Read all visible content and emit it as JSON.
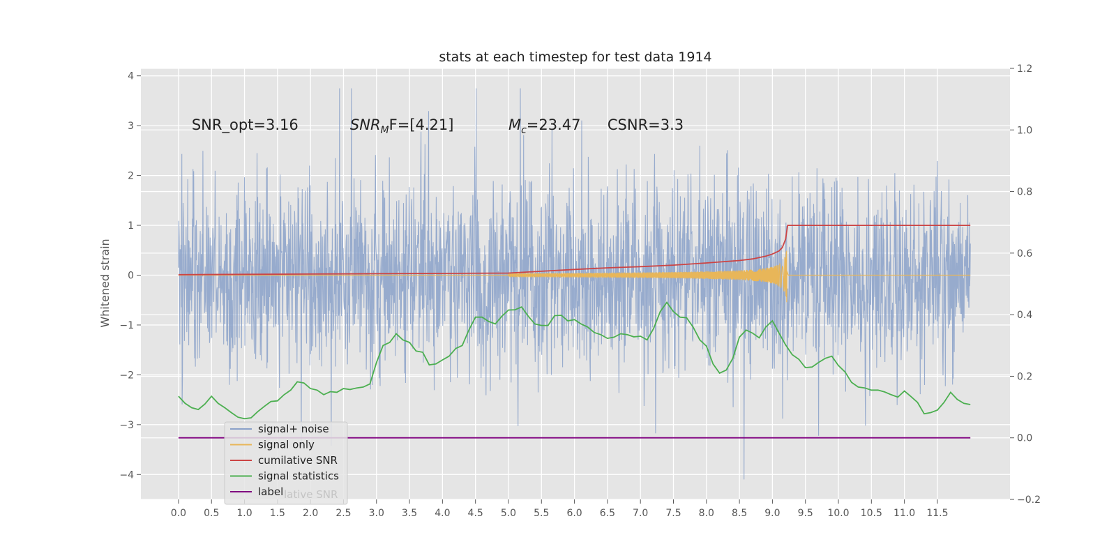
{
  "chart_data": {
    "type": "line",
    "title": "stats at each timestep for test data 1914",
    "xlabel": "",
    "ylabel": "Whitened strain",
    "xlim": [
      -0.57,
      12.6
    ],
    "ylim": [
      -4.5,
      4.15
    ],
    "ylim_right": [
      -0.2,
      1.2
    ],
    "grid": true,
    "legend_position": "lower-left",
    "x_ticks": [
      0.0,
      0.5,
      1.0,
      1.5,
      2.0,
      2.5,
      3.0,
      3.5,
      4.0,
      4.5,
      5.0,
      5.5,
      6.0,
      6.5,
      7.0,
      7.5,
      8.0,
      8.5,
      9.0,
      9.5,
      10.0,
      10.5,
      11.0,
      11.5
    ],
    "x_tick_labels": [
      "0.0",
      "0.5",
      "1.0",
      "1.5",
      "2.0",
      "2.5",
      "3.0",
      "3.5",
      "4.0",
      "4.5",
      "5.0",
      "5.5",
      "6.0",
      "6.5",
      "7.0",
      "7.5",
      "8.0",
      "8.5",
      "9.0",
      "9.5",
      "10.0",
      "10.5",
      "11.0",
      "11.5"
    ],
    "y_ticks": [
      -4,
      -3,
      -2,
      -1,
      0,
      1,
      2,
      3,
      4
    ],
    "y_tick_labels": [
      "−4",
      "−3",
      "−2",
      "−1",
      "0",
      "1",
      "2",
      "3",
      "4"
    ],
    "y_ticks_right": [
      -0.2,
      0.0,
      0.2,
      0.4,
      0.6,
      0.8,
      1.0,
      1.2
    ],
    "y_tick_labels_right": [
      "−0.2",
      "0.0",
      "0.2",
      "0.4",
      "0.6",
      "0.8",
      "1.0",
      "1.2"
    ],
    "annotations": [
      {
        "name": "snr-opt-annotation",
        "x": 0.2,
        "y": 2.92,
        "pre": "SNR_opt=3.16",
        "base": "",
        "sub": "",
        "post": ""
      },
      {
        "name": "snr-mf-annotation",
        "x": 2.6,
        "y": 2.92,
        "pre": "",
        "base": "SNR",
        "sub": "M",
        "post": "F=[4.21]"
      },
      {
        "name": "chirp-mass-annotation",
        "x": 5.0,
        "y": 2.92,
        "pre": "",
        "base": "M",
        "sub": "c",
        "post": "=23.47"
      },
      {
        "name": "csnr-annotation",
        "x": 6.5,
        "y": 2.92,
        "pre": "CSNR=3.3",
        "base": "",
        "sub": "",
        "post": ""
      }
    ],
    "series": [
      {
        "name": "signal+ noise",
        "axis": "left",
        "color": "#8aa1c9",
        "description": "whitened noise plus signal, ~1 sample per 0.005 s",
        "x_range": [
          0.0,
          12.0
        ],
        "noise_std": 0.95,
        "seed": 1914
      },
      {
        "name": "signal only",
        "axis": "left",
        "color": "#e8b659",
        "description": "chirp waveform growing to peak at merger",
        "x_start": 5.0,
        "merger_x": 9.22,
        "x_end": 12.0,
        "peak_amplitude": 0.6
      },
      {
        "name": "cumilative SNR",
        "axis": "right",
        "color": "#cc4444",
        "x": [
          0.0,
          1.0,
          2.0,
          3.0,
          4.0,
          5.0,
          5.5,
          6.0,
          6.5,
          7.0,
          7.5,
          8.0,
          8.5,
          8.7,
          8.9,
          9.0,
          9.1,
          9.15,
          9.2,
          9.23,
          9.3,
          10.0,
          11.0,
          12.0
        ],
        "values": [
          0.53,
          0.531,
          0.532,
          0.533,
          0.534,
          0.535,
          0.541,
          0.547,
          0.552,
          0.556,
          0.561,
          0.568,
          0.576,
          0.581,
          0.59,
          0.597,
          0.607,
          0.618,
          0.645,
          0.69,
          0.69,
          0.69,
          0.69,
          0.69
        ]
      },
      {
        "name": "signal statistics",
        "axis": "right",
        "color": "#4caf50",
        "x": [
          0.0,
          0.1,
          0.2,
          0.3,
          0.4,
          0.5,
          0.6,
          0.7,
          0.8,
          0.9,
          1.0,
          1.1,
          1.2,
          1.3,
          1.4,
          1.5,
          1.6,
          1.7,
          1.8,
          1.9,
          2.0,
          2.1,
          2.2,
          2.3,
          2.4,
          2.5,
          2.6,
          2.7,
          2.8,
          2.9,
          3.0,
          3.1,
          3.2,
          3.3,
          3.4,
          3.5,
          3.6,
          3.7,
          3.8,
          3.9,
          4.0,
          4.1,
          4.2,
          4.3,
          4.4,
          4.5,
          4.6,
          4.7,
          4.8,
          4.9,
          5.0,
          5.1,
          5.2,
          5.3,
          5.4,
          5.5,
          5.6,
          5.7,
          5.8,
          5.9,
          6.0,
          6.1,
          6.2,
          6.3,
          6.4,
          6.5,
          6.6,
          6.7,
          6.8,
          6.9,
          7.0,
          7.1,
          7.2,
          7.3,
          7.4,
          7.5,
          7.6,
          7.7,
          7.8,
          7.9,
          8.0,
          8.1,
          8.2,
          8.3,
          8.4,
          8.5,
          8.6,
          8.7,
          8.8,
          8.9,
          9.0,
          9.1,
          9.2,
          9.3,
          9.4,
          9.5,
          9.6,
          9.7,
          9.8,
          9.9,
          10.0,
          10.1,
          10.2,
          10.3,
          10.4,
          10.5,
          10.6,
          10.7,
          10.8,
          10.9,
          11.0,
          11.1,
          11.2,
          11.3,
          11.4,
          11.5,
          11.6,
          11.7,
          11.8,
          11.9,
          12.0
        ],
        "values": [
          0.135,
          0.112,
          0.098,
          0.092,
          0.11,
          0.135,
          0.112,
          0.098,
          0.082,
          0.067,
          0.062,
          0.065,
          0.085,
          0.102,
          0.118,
          0.12,
          0.14,
          0.155,
          0.182,
          0.178,
          0.16,
          0.155,
          0.14,
          0.15,
          0.148,
          0.16,
          0.157,
          0.162,
          0.165,
          0.175,
          0.245,
          0.3,
          0.31,
          0.338,
          0.318,
          0.31,
          0.282,
          0.278,
          0.237,
          0.24,
          0.253,
          0.265,
          0.29,
          0.3,
          0.35,
          0.392,
          0.392,
          0.378,
          0.37,
          0.395,
          0.415,
          0.416,
          0.425,
          0.395,
          0.37,
          0.365,
          0.365,
          0.397,
          0.398,
          0.38,
          0.384,
          0.37,
          0.36,
          0.342,
          0.335,
          0.323,
          0.327,
          0.338,
          0.335,
          0.328,
          0.33,
          0.318,
          0.355,
          0.41,
          0.44,
          0.41,
          0.392,
          0.39,
          0.359,
          0.318,
          0.298,
          0.24,
          0.21,
          0.22,
          0.258,
          0.327,
          0.35,
          0.34,
          0.325,
          0.36,
          0.38,
          0.34,
          0.302,
          0.27,
          0.255,
          0.228,
          0.23,
          0.245,
          0.258,
          0.265,
          0.235,
          0.214,
          0.18,
          0.165,
          0.162,
          0.155,
          0.155,
          0.149,
          0.14,
          0.132,
          0.152,
          0.134,
          0.115,
          0.078,
          0.082,
          0.09,
          0.115,
          0.148,
          0.125,
          0.112,
          0.108
        ]
      },
      {
        "name": "label",
        "axis": "right",
        "color": "#800080",
        "x": [
          0.0,
          12.0
        ],
        "values": [
          0.0,
          0.0
        ]
      }
    ],
    "legend_entries": [
      {
        "label": "signal+ noise",
        "color": "#8aa1c9"
      },
      {
        "label": "signal only",
        "color": "#e8b659"
      },
      {
        "label": "cumilative SNR",
        "color": "#cc4444"
      },
      {
        "label": "signal statistics",
        "color": "#4caf50"
      },
      {
        "label": "label",
        "color": "#800080"
      }
    ],
    "legend_ghost_text": "lative SNR"
  }
}
